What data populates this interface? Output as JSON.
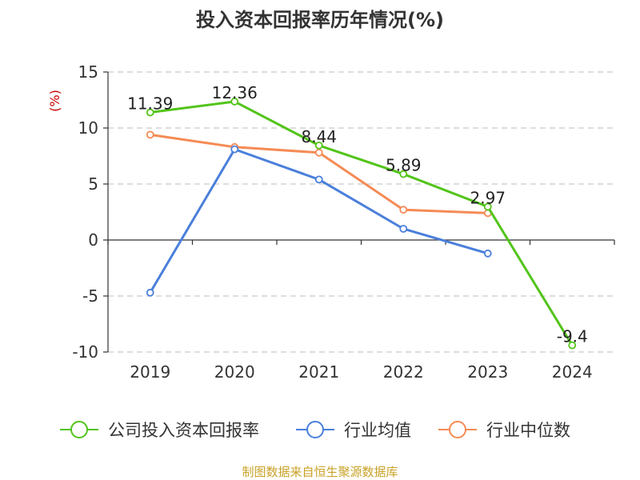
{
  "chart_data": {
    "type": "line",
    "title": "投入资本回报率历年情况(%)",
    "ylabel": "(%)",
    "xlabel": "",
    "categories": [
      "2019",
      "2020",
      "2021",
      "2022",
      "2023",
      "2024"
    ],
    "ylim": [
      -10,
      15
    ],
    "yticks": [
      15,
      10,
      5,
      0,
      -5,
      -10
    ],
    "grid": true,
    "legend_position": "bottom",
    "series": [
      {
        "name": "公司投入资本回报率",
        "color": "#52c41a",
        "values": [
          11.39,
          12.36,
          8.44,
          5.89,
          2.97,
          -9.4
        ],
        "data_labels": [
          "11.39",
          "12.36",
          "8.44",
          "5.89",
          "2.97",
          "-9.4"
        ]
      },
      {
        "name": "行业均值",
        "color": "#4a7fdb",
        "values": [
          -4.7,
          8.1,
          5.4,
          1.0,
          -1.2,
          null
        ]
      },
      {
        "name": "行业中位数",
        "color": "#f58b55",
        "values": [
          9.4,
          8.3,
          7.8,
          2.7,
          2.4,
          null
        ]
      }
    ]
  },
  "source": "制图数据来自恒生聚源数据库"
}
